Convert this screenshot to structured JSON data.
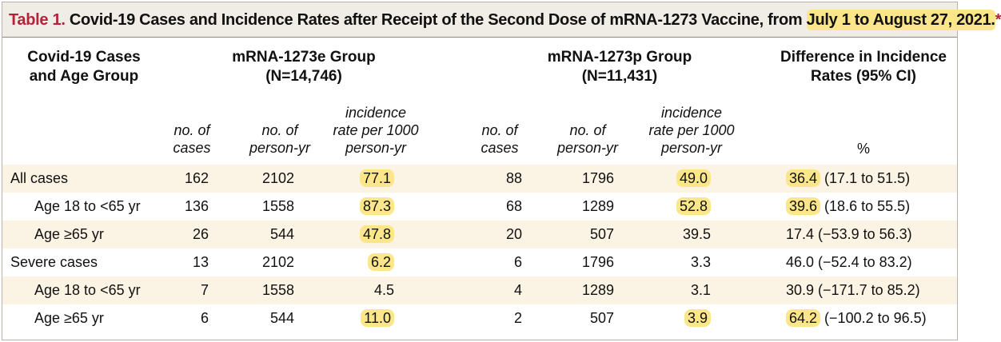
{
  "title": {
    "label": "Table 1.",
    "text_before": " Covid-19 Cases and Incidence Rates after Receipt of the Second Dose of mRNA-1273 Vaccine, from ",
    "highlighted": "July 1 to August 27, 2021.",
    "star": "*"
  },
  "headers": {
    "row_label": [
      "Covid-19 Cases",
      "and Age Group"
    ],
    "group_e": [
      "mRNA-1273e Group",
      "(N=14,746)"
    ],
    "group_p": [
      "mRNA-1273p Group",
      "(N=11,431)"
    ],
    "difference": [
      "Difference in Incidence",
      "Rates (95% CI)"
    ]
  },
  "subheaders": {
    "cases": [
      "no. of",
      "cases"
    ],
    "person_yr": [
      "no. of",
      "person-yr"
    ],
    "incidence": [
      "incidence",
      "rate per 1000",
      "person-yr"
    ],
    "percent": "%"
  },
  "rows": [
    {
      "label": "All cases",
      "indent": false,
      "shaded": true,
      "e_cases": "162",
      "e_py": "2102",
      "e_rate": "77.1",
      "e_hl": true,
      "p_cases": "88",
      "p_py": "1796",
      "p_rate": "49.0",
      "p_hl": true,
      "diff": "36.4",
      "diff_ci": " (17.1 to 51.5)",
      "diff_hl": true
    },
    {
      "label": "Age 18 to <65 yr",
      "indent": true,
      "shaded": false,
      "e_cases": "136",
      "e_py": "1558",
      "e_rate": "87.3",
      "e_hl": true,
      "p_cases": "68",
      "p_py": "1289",
      "p_rate": "52.8",
      "p_hl": true,
      "diff": "39.6",
      "diff_ci": " (18.6 to 55.5)",
      "diff_hl": true
    },
    {
      "label": "Age ≥65 yr",
      "indent": true,
      "shaded": true,
      "e_cases": "26",
      "e_py": "544",
      "e_rate": "47.8",
      "e_hl": true,
      "p_cases": "20",
      "p_py": "507",
      "p_rate": "39.5",
      "p_hl": false,
      "diff": "17.4",
      "diff_ci": " (−53.9 to 56.3)",
      "diff_hl": false
    },
    {
      "label": "Severe cases",
      "indent": false,
      "shaded": false,
      "e_cases": "13",
      "e_py": "2102",
      "e_rate": "6.2",
      "e_hl": true,
      "p_cases": "6",
      "p_py": "1796",
      "p_rate": "3.3",
      "p_hl": false,
      "diff": "46.0",
      "diff_ci": " (−52.4 to 83.2)",
      "diff_hl": false
    },
    {
      "label": "Age 18 to <65 yr",
      "indent": true,
      "shaded": true,
      "e_cases": "7",
      "e_py": "1558",
      "e_rate": "4.5",
      "e_hl": false,
      "p_cases": "4",
      "p_py": "1289",
      "p_rate": "3.1",
      "p_hl": false,
      "diff": "30.9",
      "diff_ci": " (−171.7 to 85.2)",
      "diff_hl": false
    },
    {
      "label": "Age ≥65 yr",
      "indent": true,
      "shaded": false,
      "e_cases": "6",
      "e_py": "544",
      "e_rate": "11.0",
      "e_hl": true,
      "p_cases": "2",
      "p_py": "507",
      "p_rate": "3.9",
      "p_hl": true,
      "diff": "64.2",
      "diff_ci": " (−100.2 to 96.5)",
      "diff_hl": true
    }
  ],
  "colors": {
    "title_bg": "#f0ece6",
    "table_label": "#b3233a",
    "highlight": "#fbe68a",
    "row_shade": "#fbf3e3"
  }
}
